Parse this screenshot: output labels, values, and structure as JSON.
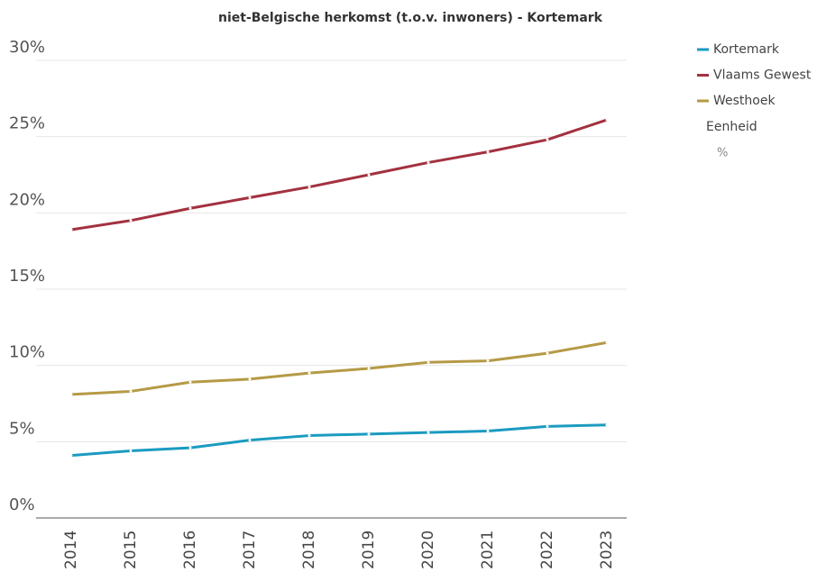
{
  "chart_data": {
    "type": "line",
    "title": "niet-Belgische herkomst (t.o.v. inwoners) - Kortemark",
    "categories": [
      "2014",
      "2015",
      "2016",
      "2017",
      "2018",
      "2019",
      "2020",
      "2021",
      "2022",
      "2023"
    ],
    "series": [
      {
        "name": "Kortemark",
        "color": "#1a9bc0",
        "values": [
          4.1,
          4.4,
          4.6,
          5.1,
          5.4,
          5.5,
          5.6,
          5.7,
          6.0,
          6.1
        ]
      },
      {
        "name": "Vlaams Gewest",
        "color": "#a3313f",
        "values": [
          18.9,
          19.5,
          20.3,
          21.0,
          21.7,
          22.5,
          23.3,
          24.0,
          24.8,
          26.1
        ]
      },
      {
        "name": "Westhoek",
        "color": "#b59a45",
        "values": [
          8.1,
          8.3,
          8.9,
          9.1,
          9.5,
          9.8,
          10.2,
          10.3,
          10.8,
          11.5
        ]
      }
    ],
    "ylim": [
      0,
      30
    ],
    "yticks": [
      {
        "value": 0,
        "label": "0%"
      },
      {
        "value": 5,
        "label": "5%"
      },
      {
        "value": 10,
        "label": "10%"
      },
      {
        "value": 15,
        "label": "15%"
      },
      {
        "value": 20,
        "label": "20%"
      },
      {
        "value": 25,
        "label": "25%"
      },
      {
        "value": 30,
        "label": "30%"
      }
    ],
    "grid": true,
    "legend": "right",
    "unit_title": "Eenheid",
    "unit": "%"
  }
}
